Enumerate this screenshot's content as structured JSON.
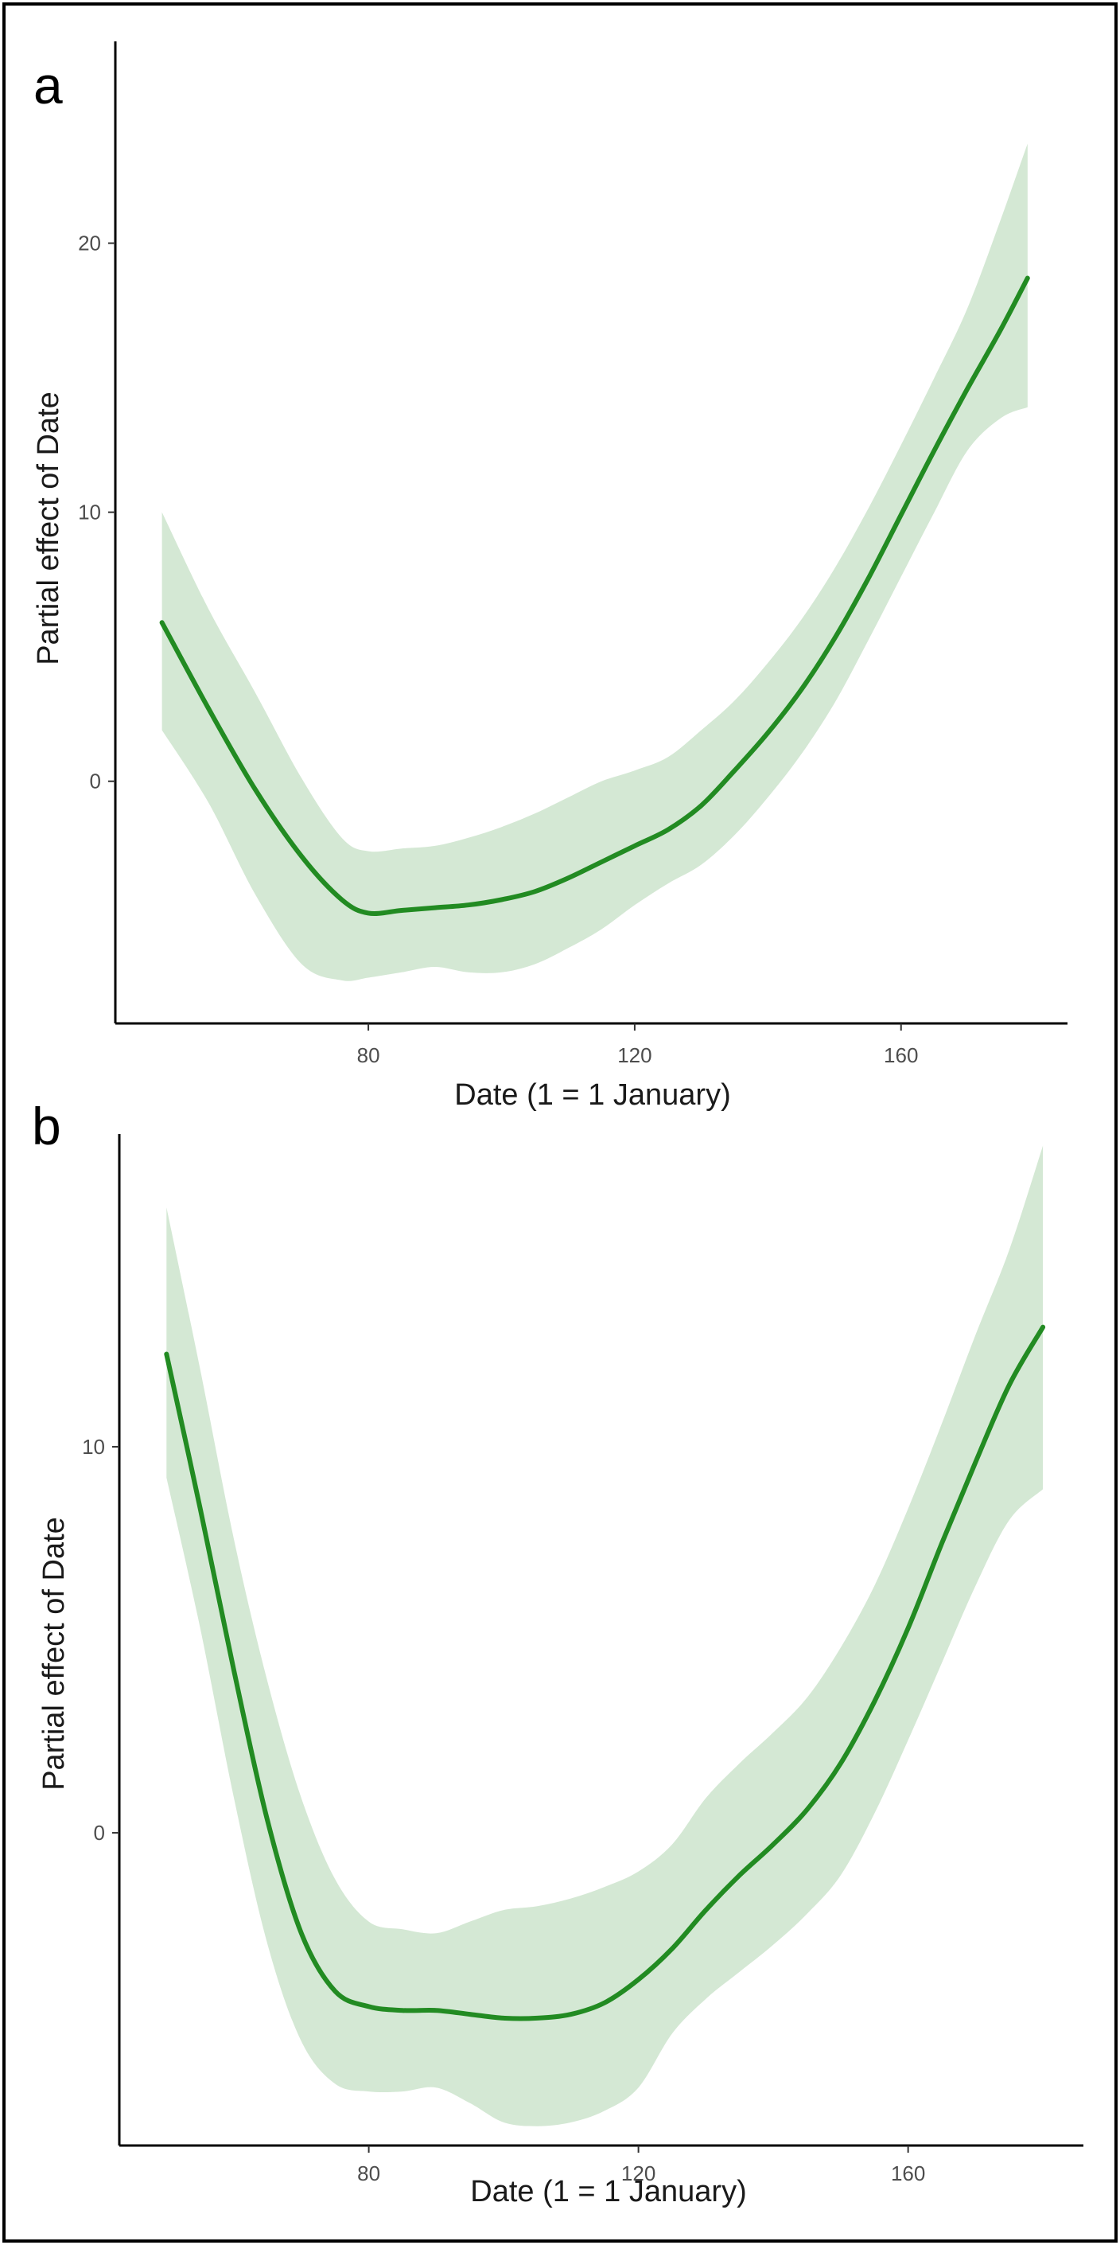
{
  "colors": {
    "line": "#228B22",
    "band": "#d4e8d4",
    "axis": "#000000",
    "frame": "#000000"
  },
  "chart_data": [
    {
      "type": "line",
      "panel_label": "a",
      "xlabel": "Date (1 = 1 January)",
      "ylabel": "Partial effect of Date",
      "x_ticks": [
        80,
        120,
        160
      ],
      "y_ticks": [
        0,
        10,
        20
      ],
      "xlim": [
        42,
        185
      ],
      "ylim": [
        -9,
        27.5
      ],
      "x": [
        49,
        56,
        63,
        70,
        76,
        80,
        85,
        90,
        95,
        100,
        105,
        110,
        115,
        120,
        125,
        130,
        135,
        140,
        145,
        150,
        155,
        160,
        165,
        170,
        175,
        179
      ],
      "fit": [
        5.9,
        2.7,
        -0.3,
        -2.8,
        -4.4,
        -4.9,
        -4.8,
        -4.7,
        -4.6,
        -4.4,
        -4.1,
        -3.6,
        -3.0,
        -2.4,
        -1.8,
        -0.9,
        0.4,
        1.8,
        3.4,
        5.3,
        7.5,
        9.9,
        12.3,
        14.6,
        16.8,
        18.7
      ],
      "lower": [
        1.9,
        -0.8,
        -4.2,
        -6.8,
        -7.4,
        -7.3,
        -7.1,
        -6.9,
        -7.1,
        -7.1,
        -6.8,
        -6.2,
        -5.5,
        -4.6,
        -3.8,
        -3.1,
        -2.0,
        -0.6,
        1.0,
        2.9,
        5.2,
        7.6,
        10.0,
        12.3,
        13.5,
        13.9
      ],
      "upper": [
        10.0,
        6.4,
        3.3,
        0.1,
        -2.1,
        -2.6,
        -2.5,
        -2.4,
        -2.1,
        -1.7,
        -1.2,
        -0.6,
        0.0,
        0.4,
        0.9,
        1.9,
        3.0,
        4.4,
        6.0,
        7.9,
        10.1,
        12.5,
        15.0,
        17.6,
        20.9,
        23.7
      ]
    },
    {
      "type": "line",
      "panel_label": "b",
      "xlabel": "Date (1 = 1 January)",
      "ylabel": "Partial effect of Date",
      "x_ticks": [
        80,
        120,
        160
      ],
      "y_ticks": [
        0,
        10
      ],
      "xlim": [
        43,
        186
      ],
      "ylim": [
        -8.1,
        18.1
      ],
      "x": [
        50,
        55,
        60,
        65,
        70,
        75,
        80,
        85,
        90,
        95,
        100,
        105,
        110,
        115,
        120,
        125,
        130,
        135,
        140,
        145,
        150,
        155,
        160,
        165,
        170,
        175,
        180
      ],
      "fit": [
        12.4,
        8.4,
        4.2,
        0.3,
        -2.6,
        -4.1,
        -4.5,
        -4.6,
        -4.6,
        -4.7,
        -4.8,
        -4.8,
        -4.7,
        -4.4,
        -3.8,
        -3.0,
        -2.0,
        -1.1,
        -0.3,
        0.6,
        1.8,
        3.4,
        5.3,
        7.5,
        9.6,
        11.6,
        13.1
      ],
      "lower": [
        9.2,
        5.3,
        0.9,
        -2.9,
        -5.4,
        -6.5,
        -6.7,
        -6.7,
        -6.6,
        -7.0,
        -7.5,
        -7.6,
        -7.5,
        -7.2,
        -6.6,
        -5.2,
        -4.3,
        -3.6,
        -2.9,
        -2.1,
        -1.1,
        0.5,
        2.4,
        4.4,
        6.4,
        8.1,
        8.9
      ],
      "upper": [
        16.2,
        12.0,
        7.6,
        3.9,
        0.9,
        -1.2,
        -2.3,
        -2.5,
        -2.6,
        -2.3,
        -2.0,
        -1.9,
        -1.7,
        -1.4,
        -1.0,
        -0.3,
        0.9,
        1.8,
        2.6,
        3.5,
        4.8,
        6.4,
        8.4,
        10.6,
        12.9,
        15.1,
        17.8
      ]
    }
  ]
}
